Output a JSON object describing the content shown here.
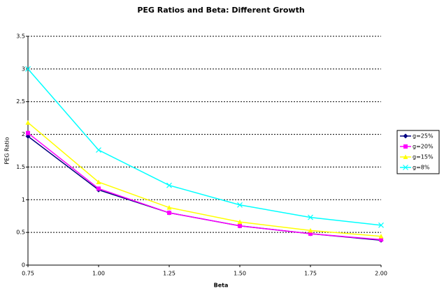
{
  "chart_data": {
    "type": "line",
    "title": "PEG Ratios and Beta: Different Growth",
    "x_label": "Beta",
    "y_label": "PEG Ratio",
    "x": [
      0.75,
      1.0,
      1.25,
      1.5,
      1.75,
      2.0
    ],
    "xlim": [
      0.75,
      2.0
    ],
    "xticks": [
      0.75,
      {
        "value": 1.0,
        "label": "1.00"
      },
      1.25,
      {
        "value": 1.5,
        "label": "1.50"
      },
      1.75,
      {
        "value": 2.0,
        "label": "2.00"
      }
    ],
    "ylim": [
      0,
      3.5
    ],
    "yticks": [
      0,
      0.5,
      1,
      1.5,
      2,
      2.5,
      3,
      3.5
    ],
    "grid": true,
    "legend": "right",
    "series": [
      {
        "name": "g=25%",
        "color": "#000080",
        "marker": "diamond",
        "values": [
          1.97,
          1.15,
          0.8,
          0.6,
          0.48,
          0.38
        ]
      },
      {
        "name": "g=20%",
        "color": "#ff00ff",
        "marker": "square",
        "values": [
          2.02,
          1.17,
          0.8,
          0.6,
          0.48,
          0.39
        ]
      },
      {
        "name": "g=15%",
        "color": "#ffff00",
        "marker": "triangle",
        "values": [
          2.18,
          1.27,
          0.88,
          0.66,
          0.53,
          0.44
        ]
      },
      {
        "name": "g=8%",
        "color": "#00ffff",
        "marker": "cross",
        "values": [
          3.0,
          1.76,
          1.22,
          0.92,
          0.73,
          0.61
        ]
      }
    ]
  }
}
